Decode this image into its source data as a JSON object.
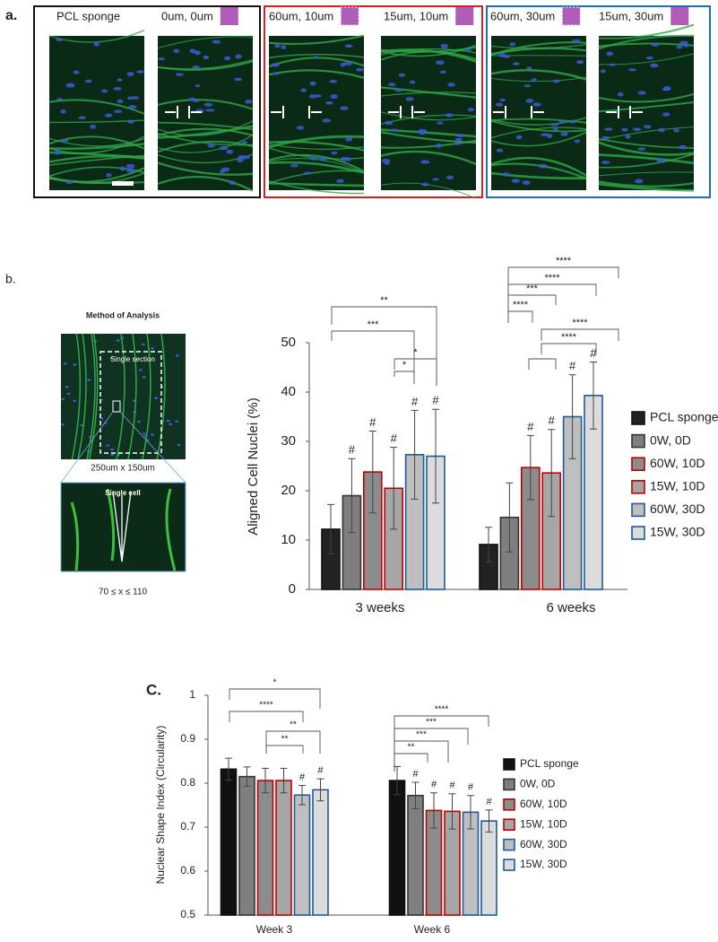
{
  "panel_a": {
    "label": "a.",
    "images": [
      {
        "label": "PCL sponge"
      },
      {
        "label": "0um, 0um"
      },
      {
        "label": "60um, 10um"
      },
      {
        "label": "15um, 10um"
      },
      {
        "label": "60um, 30um"
      },
      {
        "label": "15um, 30um"
      }
    ]
  },
  "panel_b": {
    "label": "b.",
    "method": {
      "title": "Method of Analysis",
      "section_label": "Single section",
      "section_size": "250um x 150um",
      "cell_label": "Single cell",
      "angle_range": "70 ≤ x ≤ 110"
    }
  },
  "panel_c": {
    "label": "C."
  },
  "chart_data": [
    {
      "type": "bar",
      "ylabel": "Aligned Cell  Nuclei (%)",
      "categories": [
        "3 weeks",
        "6 weeks"
      ],
      "ylim": [
        0,
        50
      ],
      "yticks": [
        0,
        10,
        20,
        30,
        40,
        50
      ],
      "legend": "right",
      "series": [
        {
          "name": "PCL sponge",
          "color": "#222222",
          "edge": "#111111",
          "values": [
            12.2,
            9.1
          ],
          "errors": [
            5,
            3.5
          ],
          "markers": [
            null,
            null
          ]
        },
        {
          "name": "0W, 0D",
          "color": "#7f7f7f",
          "edge": "#333333",
          "values": [
            19,
            14.6
          ],
          "errors": [
            7.5,
            7
          ],
          "markers": [
            "#",
            null
          ]
        },
        {
          "name": "60W, 10D",
          "color": "#8c8c8c",
          "edge": "#c00000",
          "values": [
            23.8,
            24.7
          ],
          "errors": [
            8.3,
            6.5
          ],
          "markers": [
            "#",
            "#"
          ]
        },
        {
          "name": "15W, 10D",
          "color": "#a6a6a6",
          "edge": "#c00000",
          "values": [
            20.5,
            23.6
          ],
          "errors": [
            8.3,
            8.8
          ],
          "markers": [
            "#",
            "#"
          ]
        },
        {
          "name": "60W, 30D",
          "color": "#bfbfbf",
          "edge": "#1f5a9a",
          "values": [
            27.3,
            35
          ],
          "errors": [
            9,
            8.5
          ],
          "markers": [
            "#",
            "#"
          ]
        },
        {
          "name": "15W, 30D",
          "color": "#dcdcdc",
          "edge": "#1f5a9a",
          "values": [
            27,
            39.3
          ],
          "errors": [
            9.5,
            6.8
          ],
          "markers": [
            "#",
            "#"
          ]
        }
      ],
      "brackets": [
        {
          "label": "**"
        },
        {
          "label": "***"
        },
        {
          "label": "*"
        },
        {
          "label": "*"
        },
        {
          "label": "****"
        },
        {
          "label": "****"
        },
        {
          "label": "***"
        },
        {
          "label": "****"
        },
        {
          "label": "****"
        },
        {
          "label": "****"
        }
      ]
    },
    {
      "type": "bar",
      "ylabel": "Nuclear Shape Index (Circularity)",
      "categories": [
        "Week 3",
        "Week 6"
      ],
      "ylim": [
        0.5,
        1
      ],
      "yticks": [
        0.5,
        0.6,
        0.7,
        0.8,
        0.9,
        1
      ],
      "legend": "right",
      "series": [
        {
          "name": "PCL sponge",
          "color": "#111111",
          "edge": "#111111",
          "values": [
            0.832,
            0.806
          ],
          "errors": [
            0.025,
            0.032
          ],
          "markers": [
            null,
            null
          ]
        },
        {
          "name": "0W, 0D",
          "color": "#7f7f7f",
          "edge": "#333333",
          "values": [
            0.815,
            0.772
          ],
          "errors": [
            0.022,
            0.03
          ],
          "markers": [
            null,
            "#"
          ]
        },
        {
          "name": "60W, 10D",
          "color": "#8c8c8c",
          "edge": "#c00000",
          "values": [
            0.806,
            0.738
          ],
          "errors": [
            0.028,
            0.04
          ],
          "markers": [
            null,
            "#"
          ]
        },
        {
          "name": "15W, 10D",
          "color": "#a6a6a6",
          "edge": "#c00000",
          "values": [
            0.806,
            0.736
          ],
          "errors": [
            0.028,
            0.04
          ],
          "markers": [
            null,
            "#"
          ]
        },
        {
          "name": "60W, 30D",
          "color": "#bfbfbf",
          "edge": "#1f5a9a",
          "values": [
            0.773,
            0.734
          ],
          "errors": [
            0.022,
            0.038
          ],
          "markers": [
            "#",
            "#"
          ]
        },
        {
          "name": "15W, 30D",
          "color": "#dcdcdc",
          "edge": "#1f5a9a",
          "values": [
            0.785,
            0.714
          ],
          "errors": [
            0.025,
            0.025
          ],
          "markers": [
            "#",
            "#"
          ]
        }
      ],
      "brackets": [
        {
          "label": "*"
        },
        {
          "label": "****"
        },
        {
          "label": "**"
        },
        {
          "label": "**"
        },
        {
          "label": "****"
        },
        {
          "label": "***"
        },
        {
          "label": "***"
        },
        {
          "label": "**"
        }
      ]
    }
  ]
}
